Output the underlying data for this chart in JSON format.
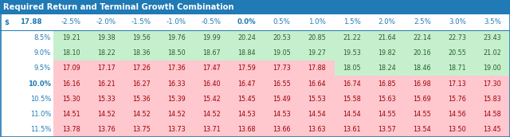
{
  "title": "Required Return and Terminal Growth Combination",
  "title_bg": "#1f7ab5",
  "title_fg": "#ffffff",
  "header_label": "$",
  "current_price": "17.88",
  "col_headers": [
    "-2.5%",
    "-2.0%",
    "-1.5%",
    "-1.0%",
    "-0.5%",
    "0.0%",
    "0.5%",
    "1.0%",
    "1.5%",
    "2.0%",
    "2.5%",
    "3.0%",
    "3.5%"
  ],
  "row_headers": [
    "8.5%",
    "9.0%",
    "9.5%",
    "10.0%",
    "10.5%",
    "11.0%",
    "11.5%"
  ],
  "bold_row": "10.0%",
  "bold_col": "0.0%",
  "values": [
    [
      19.21,
      19.38,
      19.56,
      19.76,
      19.99,
      20.24,
      20.53,
      20.85,
      21.22,
      21.64,
      22.14,
      22.73,
      23.43
    ],
    [
      18.1,
      18.22,
      18.36,
      18.5,
      18.67,
      18.84,
      19.05,
      19.27,
      19.53,
      19.82,
      20.16,
      20.55,
      21.02
    ],
    [
      17.09,
      17.17,
      17.26,
      17.36,
      17.47,
      17.59,
      17.73,
      17.88,
      18.05,
      18.24,
      18.46,
      18.71,
      19.0
    ],
    [
      16.16,
      16.21,
      16.27,
      16.33,
      16.4,
      16.47,
      16.55,
      16.64,
      16.74,
      16.85,
      16.98,
      17.13,
      17.3
    ],
    [
      15.3,
      15.33,
      15.36,
      15.39,
      15.42,
      15.45,
      15.49,
      15.53,
      15.58,
      15.63,
      15.69,
      15.76,
      15.83
    ],
    [
      14.51,
      14.52,
      14.52,
      14.52,
      14.52,
      14.53,
      14.53,
      14.54,
      14.54,
      14.55,
      14.55,
      14.56,
      14.58
    ],
    [
      13.78,
      13.76,
      13.75,
      13.73,
      13.71,
      13.68,
      13.66,
      13.63,
      13.61,
      13.57,
      13.54,
      13.5,
      13.45
    ]
  ],
  "threshold": 17.88,
  "color_above": "#c6efce",
  "color_below": "#ffc7ce",
  "text_above": "#276229",
  "text_below": "#9c0006",
  "header_bg": "#ffffff",
  "header_text": "#1f7ab5",
  "row_header_text": "#1f7ab5",
  "bg_color": "#ffffff",
  "border_color": "#1f7ab5",
  "title_fontsize": 7.2,
  "header_fontsize": 6.2,
  "cell_fontsize": 5.8,
  "row_label_fontsize": 6.0
}
